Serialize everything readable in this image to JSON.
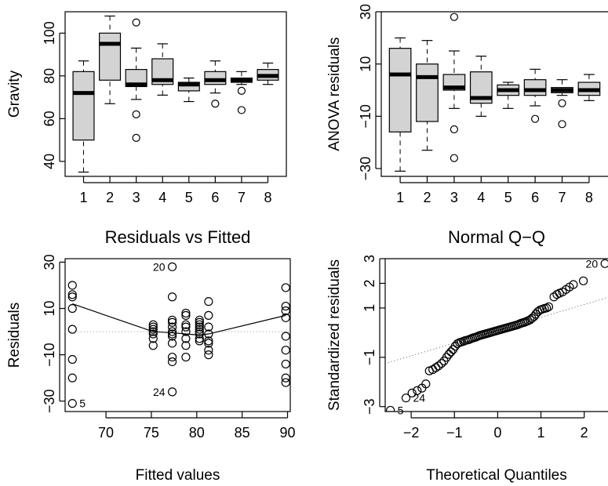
{
  "chart_data": [
    {
      "type": "box",
      "title": "",
      "xlabel": "",
      "ylabel": "Gravity",
      "categories": [
        "1",
        "2",
        "3",
        "4",
        "5",
        "6",
        "7",
        "8"
      ],
      "ylim": [
        33,
        110
      ],
      "yticks": [
        "40",
        "60",
        "80",
        "100"
      ],
      "box_fill": "#d3d3d3",
      "boxes": [
        {
          "cat": "1",
          "whisker_low": 35,
          "q1": 50,
          "median": 72,
          "q3": 82,
          "whisker_high": 87,
          "outliers": []
        },
        {
          "cat": "2",
          "whisker_low": 67,
          "q1": 78,
          "median": 95,
          "q3": 100,
          "whisker_high": 108,
          "outliers": []
        },
        {
          "cat": "3",
          "whisker_low": 69,
          "q1": 75,
          "median": 76,
          "q3": 83,
          "whisker_high": 93,
          "outliers": [
            105,
            62,
            51
          ]
        },
        {
          "cat": "4",
          "whisker_low": 71,
          "q1": 76,
          "median": 78,
          "q3": 88,
          "whisker_high": 95,
          "outliers": []
        },
        {
          "cat": "5",
          "whisker_low": 68,
          "q1": 73,
          "median": 76,
          "q3": 77,
          "whisker_high": 79,
          "outliers": []
        },
        {
          "cat": "6",
          "whisker_low": 72,
          "q1": 76,
          "median": 78,
          "q3": 82,
          "whisker_high": 87,
          "outliers": [
            67
          ]
        },
        {
          "cat": "7",
          "whisker_low": 76,
          "q1": 77,
          "median": 78,
          "q3": 79,
          "whisker_high": 82,
          "outliers": [
            73,
            64
          ]
        },
        {
          "cat": "8",
          "whisker_low": 76,
          "q1": 78,
          "median": 80,
          "q3": 83,
          "whisker_high": 86,
          "outliers": []
        }
      ]
    },
    {
      "type": "box",
      "title": "",
      "xlabel": "",
      "ylabel": "ANOVA residuals",
      "categories": [
        "1",
        "2",
        "3",
        "4",
        "5",
        "6",
        "7",
        "8"
      ],
      "ylim": [
        -33,
        30
      ],
      "yticks": [
        "-30",
        "-10",
        "10",
        "30"
      ],
      "box_fill": "#d3d3d3",
      "boxes": [
        {
          "cat": "1",
          "whisker_low": -31,
          "q1": -16,
          "median": 6,
          "q3": 16,
          "whisker_high": 20,
          "outliers": []
        },
        {
          "cat": "2",
          "whisker_low": -23,
          "q1": -12,
          "median": 5,
          "q3": 10,
          "whisker_high": 19,
          "outliers": []
        },
        {
          "cat": "3",
          "whisker_low": -7,
          "q1": 0,
          "median": 1,
          "q3": 6,
          "whisker_high": 15,
          "outliers": [
            28,
            -15,
            -26
          ]
        },
        {
          "cat": "4",
          "whisker_low": -10,
          "q1": -5,
          "median": -3,
          "q3": 7,
          "whisker_high": 13,
          "outliers": []
        },
        {
          "cat": "5",
          "whisker_low": -7,
          "q1": -2,
          "median": 0,
          "q3": 2,
          "whisker_high": 3,
          "outliers": []
        },
        {
          "cat": "6",
          "whisker_low": -6,
          "q1": -2,
          "median": 0,
          "q3": 4,
          "whisker_high": 8,
          "outliers": [
            -11
          ]
        },
        {
          "cat": "7",
          "whisker_low": -2,
          "q1": -1,
          "median": 0,
          "q3": 1,
          "whisker_high": 4,
          "outliers": [
            -5,
            -13
          ]
        },
        {
          "cat": "8",
          "whisker_low": -4,
          "q1": -2,
          "median": 0,
          "q3": 3,
          "whisker_high": 6,
          "outliers": []
        }
      ]
    },
    {
      "type": "scatter",
      "title": "Residuals vs Fitted",
      "xlabel": "Fitted values",
      "ylabel": "Residuals",
      "xlim": [
        65.5,
        90.3
      ],
      "ylim": [
        -34.5,
        31.5
      ],
      "xticks": [
        "70",
        "75",
        "80",
        "85",
        "90"
      ],
      "yticks": [
        "-30",
        "-10",
        "10",
        "30"
      ],
      "points": [
        [
          66.3,
          20
        ],
        [
          66.3,
          16
        ],
        [
          66.3,
          15
        ],
        [
          66.3,
          10
        ],
        [
          66.3,
          1
        ],
        [
          66.3,
          -12
        ],
        [
          66.3,
          -20
        ],
        [
          66.3,
          -31
        ],
        [
          75.2,
          3
        ],
        [
          75.2,
          2
        ],
        [
          75.2,
          1
        ],
        [
          75.2,
          0
        ],
        [
          75.2,
          -1
        ],
        [
          75.2,
          -3
        ],
        [
          75.2,
          -6
        ],
        [
          77.3,
          28
        ],
        [
          77.3,
          15
        ],
        [
          77.3,
          5
        ],
        [
          77.3,
          4
        ],
        [
          77.3,
          2
        ],
        [
          77.3,
          0
        ],
        [
          77.3,
          -1
        ],
        [
          77.3,
          -2
        ],
        [
          77.3,
          -5
        ],
        [
          77.3,
          -11
        ],
        [
          77.3,
          -13
        ],
        [
          77.3,
          -26
        ],
        [
          78.8,
          8
        ],
        [
          78.8,
          7
        ],
        [
          78.8,
          3
        ],
        [
          78.8,
          2
        ],
        [
          78.8,
          0
        ],
        [
          78.8,
          -3
        ],
        [
          78.8,
          -6
        ],
        [
          78.8,
          -11
        ],
        [
          80.3,
          5
        ],
        [
          80.3,
          4
        ],
        [
          80.3,
          3
        ],
        [
          80.3,
          2
        ],
        [
          80.3,
          1
        ],
        [
          80.3,
          0
        ],
        [
          80.3,
          -1
        ],
        [
          80.3,
          -3
        ],
        [
          80.3,
          -4
        ],
        [
          81.3,
          13
        ],
        [
          81.3,
          7
        ],
        [
          81.3,
          2
        ],
        [
          81.3,
          -1
        ],
        [
          81.3,
          -4
        ],
        [
          81.3,
          -5
        ],
        [
          81.3,
          -8
        ],
        [
          81.3,
          -10
        ],
        [
          89.8,
          19
        ],
        [
          89.8,
          11
        ],
        [
          89.8,
          9
        ],
        [
          89.8,
          6
        ],
        [
          89.8,
          -2
        ],
        [
          89.8,
          -8
        ],
        [
          89.8,
          -14
        ],
        [
          89.8,
          -20
        ],
        [
          89.8,
          -22
        ]
      ],
      "smooth_line": [
        [
          66.3,
          12
        ],
        [
          75.2,
          0
        ],
        [
          77.3,
          -0.5
        ],
        [
          78.8,
          -1
        ],
        [
          80.3,
          -1.5
        ],
        [
          81.3,
          -1
        ],
        [
          89.8,
          7
        ]
      ],
      "reference_y": 0,
      "labels": [
        {
          "text": "20",
          "x": 77.3,
          "y": 28,
          "side": "left"
        },
        {
          "text": "24",
          "x": 77.3,
          "y": -26,
          "side": "left"
        },
        {
          "text": "5",
          "x": 66.3,
          "y": -31,
          "side": "right"
        }
      ]
    },
    {
      "type": "scatter",
      "title": "Normal Q−Q",
      "xlabel": "Theoretical Quantiles",
      "ylabel": "Standardized residuals",
      "xlim": [
        -2.6,
        2.55
      ],
      "ylim": [
        -3.2,
        3.0
      ],
      "xticks": [
        "-2",
        "-1",
        "0",
        "1",
        "2"
      ],
      "yticks": [
        "-3",
        "-1",
        "1",
        "2",
        "3"
      ],
      "points": [
        [
          -2.48,
          -3.15
        ],
        [
          -2.12,
          -2.65
        ],
        [
          -1.98,
          -2.45
        ],
        [
          -1.86,
          -2.35
        ],
        [
          -1.75,
          -2.25
        ],
        [
          -1.66,
          -2.08
        ],
        [
          -1.58,
          -1.55
        ],
        [
          -1.5,
          -1.5
        ],
        [
          -1.43,
          -1.42
        ],
        [
          -1.37,
          -1.35
        ],
        [
          -1.3,
          -1.25
        ],
        [
          -1.24,
          -1.15
        ],
        [
          -1.18,
          -1.0
        ],
        [
          -1.13,
          -0.88
        ],
        [
          -1.08,
          -0.78
        ],
        [
          -1.03,
          -0.68
        ],
        [
          -0.98,
          -0.55
        ],
        [
          -0.93,
          -0.45
        ],
        [
          -0.88,
          -0.4
        ],
        [
          -0.84,
          -0.38
        ],
        [
          -0.79,
          -0.35
        ],
        [
          -0.75,
          -0.32
        ],
        [
          -0.7,
          -0.3
        ],
        [
          -0.66,
          -0.28
        ],
        [
          -0.62,
          -0.25
        ],
        [
          -0.58,
          -0.22
        ],
        [
          -0.54,
          -0.2
        ],
        [
          -0.5,
          -0.18
        ],
        [
          -0.46,
          -0.15
        ],
        [
          -0.42,
          -0.12
        ],
        [
          -0.38,
          -0.1
        ],
        [
          -0.34,
          -0.08
        ],
        [
          -0.3,
          -0.06
        ],
        [
          -0.26,
          -0.04
        ],
        [
          -0.22,
          -0.02
        ],
        [
          -0.18,
          0.0
        ],
        [
          -0.14,
          0.02
        ],
        [
          -0.1,
          0.04
        ],
        [
          -0.06,
          0.06
        ],
        [
          -0.02,
          0.08
        ],
        [
          0.02,
          0.1
        ],
        [
          0.06,
          0.12
        ],
        [
          0.1,
          0.14
        ],
        [
          0.14,
          0.16
        ],
        [
          0.18,
          0.18
        ],
        [
          0.22,
          0.2
        ],
        [
          0.26,
          0.22
        ],
        [
          0.3,
          0.24
        ],
        [
          0.34,
          0.26
        ],
        [
          0.38,
          0.28
        ],
        [
          0.42,
          0.3
        ],
        [
          0.46,
          0.32
        ],
        [
          0.5,
          0.35
        ],
        [
          0.54,
          0.38
        ],
        [
          0.58,
          0.4
        ],
        [
          0.62,
          0.42
        ],
        [
          0.66,
          0.45
        ],
        [
          0.7,
          0.48
        ],
        [
          0.75,
          0.52
        ],
        [
          0.79,
          0.58
        ],
        [
          0.84,
          0.65
        ],
        [
          0.88,
          0.75
        ],
        [
          0.93,
          0.85
        ],
        [
          0.98,
          0.92
        ],
        [
          1.03,
          0.95
        ],
        [
          1.08,
          0.98
        ],
        [
          1.13,
          1.0
        ],
        [
          1.18,
          1.05
        ],
        [
          1.3,
          1.45
        ],
        [
          1.37,
          1.55
        ],
        [
          1.43,
          1.6
        ],
        [
          1.5,
          1.65
        ],
        [
          1.58,
          1.75
        ],
        [
          1.66,
          1.85
        ],
        [
          1.75,
          1.95
        ],
        [
          1.98,
          2.1
        ],
        [
          2.48,
          2.8
        ]
      ],
      "reference_line": {
        "intercept": 0.1,
        "slope": 0.52
      },
      "labels": [
        {
          "text": "20",
          "x": 2.48,
          "y": 2.8,
          "side": "left"
        },
        {
          "text": "24",
          "x": -2.12,
          "y": -2.65,
          "side": "right"
        },
        {
          "text": "5",
          "x": -2.48,
          "y": -3.15,
          "side": "right"
        }
      ]
    }
  ]
}
